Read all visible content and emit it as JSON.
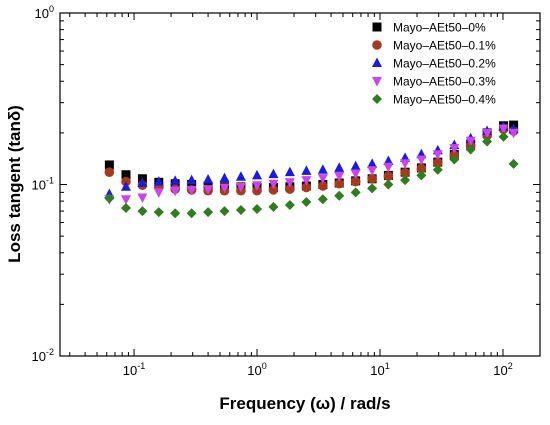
{
  "chart_data": {
    "type": "scatter",
    "xlabel": "Frequency (ω) / rad/s",
    "ylabel": "Loss tangent (tanδ)",
    "xscale": "log",
    "yscale": "log",
    "xlim": [
      0.025,
      200
    ],
    "ylim": [
      0.01,
      1
    ],
    "grid": false,
    "legend_position": "top-right",
    "x_ticks": [
      {
        "value": 0.1,
        "base": "10",
        "exp": "-1"
      },
      {
        "value": 1,
        "base": "10",
        "exp": "0"
      },
      {
        "value": 10,
        "base": "10",
        "exp": "1"
      },
      {
        "value": 100,
        "base": "10",
        "exp": "2"
      }
    ],
    "y_ticks": [
      {
        "value": 0.01,
        "base": "10",
        "exp": "-2"
      },
      {
        "value": 0.1,
        "base": "10",
        "exp": "-1"
      },
      {
        "value": 1,
        "base": "10",
        "exp": "0"
      }
    ],
    "x": [
      0.063,
      0.086,
      0.117,
      0.159,
      0.216,
      0.294,
      0.4,
      0.544,
      0.74,
      1.0,
      1.36,
      1.85,
      2.52,
      3.43,
      4.66,
      6.34,
      8.63,
      11.7,
      16.0,
      21.7,
      29.5,
      40.2,
      54.6,
      74.3,
      101,
      122
    ],
    "series": [
      {
        "name": "Mayo–AEt50–0%",
        "marker": "square",
        "color": "#000000",
        "values": [
          0.13,
          0.114,
          0.108,
          0.103,
          0.101,
          0.1,
          0.098,
          0.097,
          0.097,
          0.096,
          0.096,
          0.097,
          0.098,
          0.1,
          0.102,
          0.105,
          0.108,
          0.113,
          0.118,
          0.125,
          0.135,
          0.15,
          0.172,
          0.2,
          0.22,
          0.222
        ]
      },
      {
        "name": "Mayo–AEt50–0.1%",
        "marker": "circle",
        "color": "#a63a1e",
        "values": [
          0.118,
          0.104,
          0.099,
          0.096,
          0.094,
          0.093,
          0.092,
          0.092,
          0.092,
          0.092,
          0.093,
          0.094,
          0.096,
          0.098,
          0.101,
          0.104,
          0.108,
          0.112,
          0.117,
          0.124,
          0.134,
          0.148,
          0.168,
          0.193,
          0.21,
          0.205
        ]
      },
      {
        "name": "Mayo–AEt50–0.2%",
        "marker": "triangle-up",
        "color": "#1a1ae0",
        "values": [
          0.088,
          0.097,
          0.102,
          0.104,
          0.105,
          0.106,
          0.107,
          0.109,
          0.111,
          0.113,
          0.115,
          0.118,
          0.12,
          0.122,
          0.125,
          0.128,
          0.132,
          0.137,
          0.143,
          0.15,
          0.158,
          0.17,
          0.186,
          0.205,
          0.218,
          0.21
        ]
      },
      {
        "name": "Mayo–AEt50–0.3%",
        "marker": "triangle-down",
        "color": "#cc44ee",
        "values": [
          0.082,
          0.082,
          0.084,
          0.09,
          0.092,
          0.093,
          0.094,
          0.096,
          0.097,
          0.099,
          0.101,
          0.103,
          0.106,
          0.109,
          0.112,
          0.116,
          0.121,
          0.127,
          0.133,
          0.14,
          0.15,
          0.163,
          0.18,
          0.2,
          0.212,
          0.2
        ]
      },
      {
        "name": "Mayo–AEt50–0.4%",
        "marker": "diamond",
        "color": "#2e7d1e",
        "values": [
          0.083,
          0.073,
          0.07,
          0.069,
          0.068,
          0.068,
          0.069,
          0.07,
          0.071,
          0.072,
          0.074,
          0.076,
          0.079,
          0.082,
          0.086,
          0.09,
          0.095,
          0.1,
          0.106,
          0.113,
          0.122,
          0.14,
          0.16,
          0.178,
          0.19,
          0.132
        ]
      }
    ]
  }
}
